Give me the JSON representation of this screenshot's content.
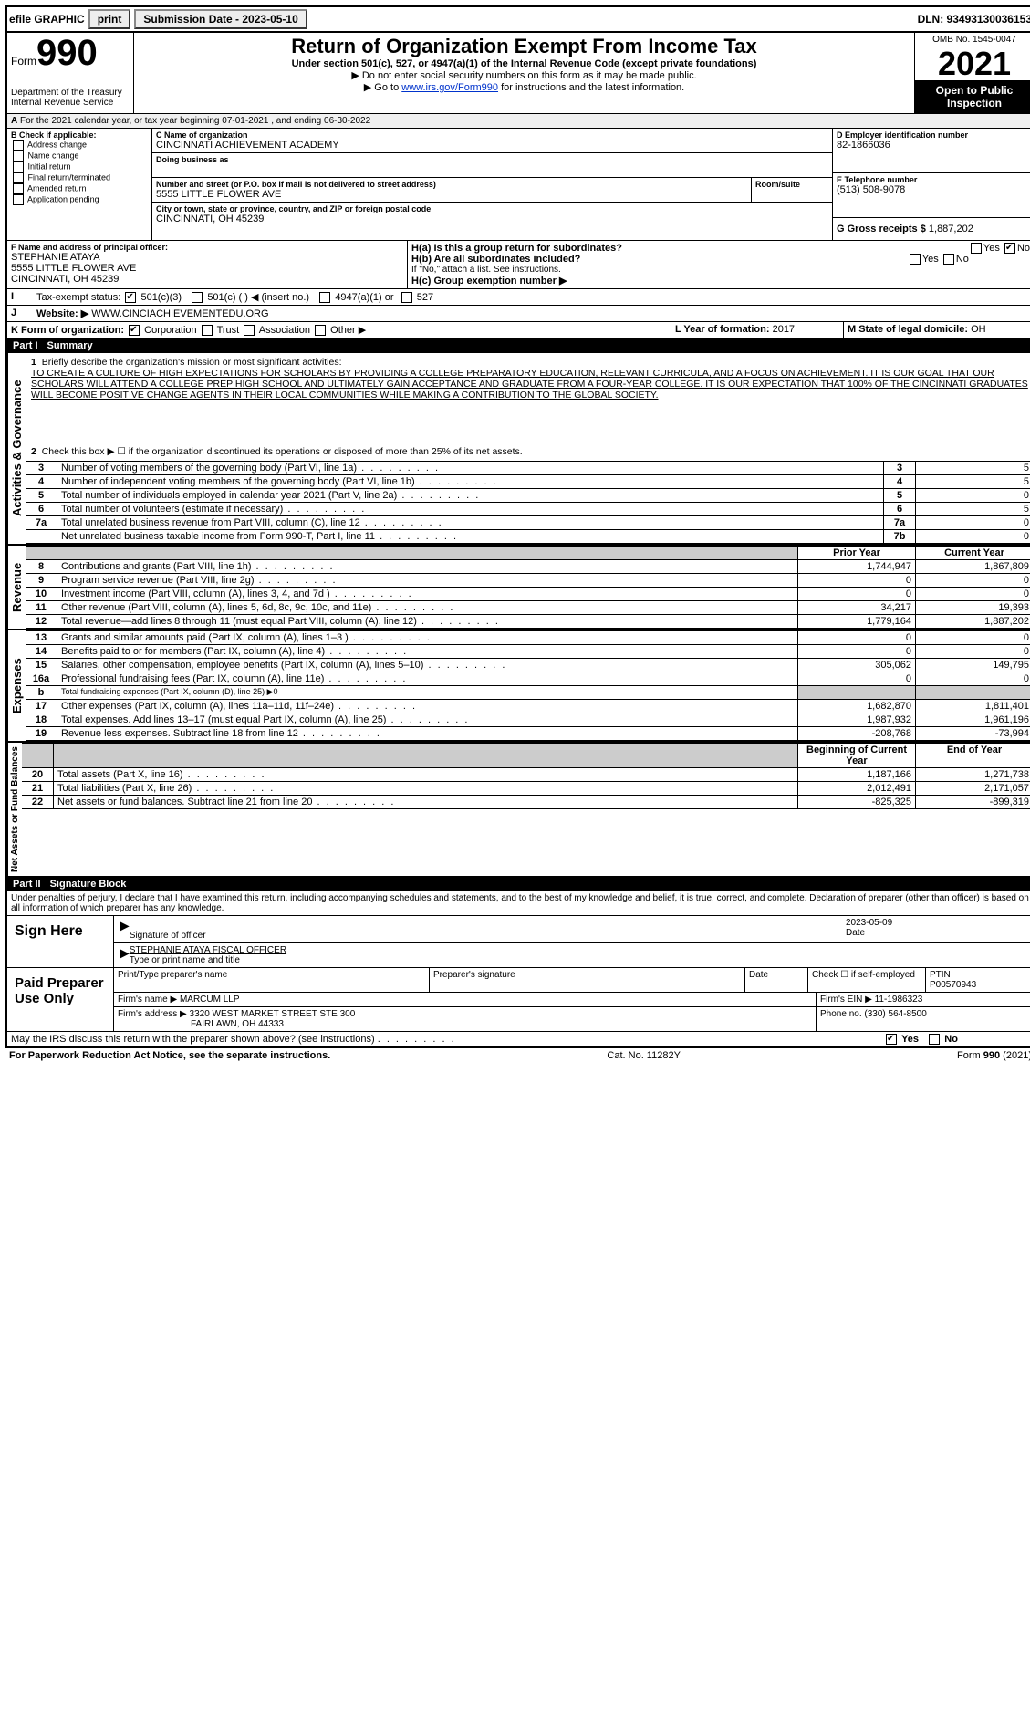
{
  "topbar": {
    "efile": "efile GRAPHIC",
    "print": "print",
    "sub_lbl": "Submission Date - 2023-05-10",
    "dln": "DLN: 93493130036153"
  },
  "header": {
    "form_word": "Form",
    "form_num": "990",
    "dept": "Department of the Treasury",
    "irs": "Internal Revenue Service",
    "title": "Return of Organization Exempt From Income Tax",
    "sub1": "Under section 501(c), 527, or 4947(a)(1) of the Internal Revenue Code (except private foundations)",
    "sub2": "▶ Do not enter social security numbers on this form as it may be made public.",
    "sub3_pre": "▶ Go to ",
    "sub3_link": "www.irs.gov/Form990",
    "sub3_post": " for instructions and the latest information.",
    "omb": "OMB No. 1545-0047",
    "year": "2021",
    "open": "Open to Public Inspection"
  },
  "periodA": "For the 2021 calendar year, or tax year beginning 07-01-2021 , and ending 06-30-2022",
  "boxB": {
    "title": "B Check if applicable:",
    "opts": [
      "Address change",
      "Name change",
      "Initial return",
      "Final return/terminated",
      "Amended return",
      "Application pending"
    ]
  },
  "boxC": {
    "lbl": "C Name of organization",
    "name": "CINCINNATI ACHIEVEMENT ACADEMY",
    "dba_lbl": "Doing business as",
    "addr_lbl": "Number and street (or P.O. box if mail is not delivered to street address)",
    "room_lbl": "Room/suite",
    "addr": "5555 LITTLE FLOWER AVE",
    "city_lbl": "City or town, state or province, country, and ZIP or foreign postal code",
    "city": "CINCINNATI, OH  45239"
  },
  "boxD": {
    "lbl": "D Employer identification number",
    "val": "82-1866036"
  },
  "boxE": {
    "lbl": "E Telephone number",
    "val": "(513) 508-9078"
  },
  "boxG": {
    "lbl": "G Gross receipts $",
    "val": "1,887,202"
  },
  "boxF": {
    "lbl": "F  Name and address of principal officer:",
    "name": "STEPHANIE ATAYA",
    "addr1": "5555 LITTLE FLOWER AVE",
    "addr2": "CINCINNATI, OH  45239"
  },
  "boxH": {
    "a": "H(a)  Is this a group return for subordinates?",
    "b": "H(b)  Are all subordinates included?",
    "note": "If \"No,\" attach a list. See instructions.",
    "c": "H(c)  Group exemption number ▶"
  },
  "lineI": {
    "lbl": "Tax-exempt status:",
    "o1": "501(c)(3)",
    "o2": "501(c) (  ) ◀ (insert no.)",
    "o3": "4947(a)(1) or",
    "o4": "527"
  },
  "lineJ": {
    "lbl": "Website: ▶",
    "val": "WWW.CINCIACHIEVEMENTEDU.ORG"
  },
  "lineK": {
    "lbl": "K Form of organization:",
    "o1": "Corporation",
    "o2": "Trust",
    "o3": "Association",
    "o4": "Other ▶"
  },
  "lineL": {
    "lbl": "L Year of formation:",
    "val": "2017"
  },
  "lineM": {
    "lbl": "M State of legal domicile:",
    "val": "OH"
  },
  "part1": {
    "title": "Summary",
    "vert1": "Activities & Governance",
    "vert2": "Revenue",
    "vert3": "Expenses",
    "vert4": "Net Assets or Fund Balances",
    "l1_lbl": "Briefly describe the organization's mission or most significant activities:",
    "l1_text": "TO CREATE A CULTURE OF HIGH EXPECTATIONS FOR SCHOLARS BY PROVIDING A COLLEGE PREPARATORY EDUCATION, RELEVANT CURRICULA, AND A FOCUS ON ACHIEVEMENT. IT IS OUR GOAL THAT OUR SCHOLARS WILL ATTEND A COLLEGE PREP HIGH SCHOOL AND ULTIMATELY GAIN ACCEPTANCE AND GRADUATE FROM A FOUR-YEAR COLLEGE. IT IS OUR EXPECTATION THAT 100% OF THE CINCINNATI GRADUATES WILL BECOME POSITIVE CHANGE AGENTS IN THEIR LOCAL COMMUNITIES WHILE MAKING A CONTRIBUTION TO THE GLOBAL SOCIETY.",
    "l2": "Check this box ▶ ☐ if the organization discontinued its operations or disposed of more than 25% of its net assets.",
    "rows_gov": [
      {
        "n": "3",
        "lbl": "Number of voting members of the governing body (Part VI, line 1a)",
        "box": "3",
        "val": "5"
      },
      {
        "n": "4",
        "lbl": "Number of independent voting members of the governing body (Part VI, line 1b)",
        "box": "4",
        "val": "5"
      },
      {
        "n": "5",
        "lbl": "Total number of individuals employed in calendar year 2021 (Part V, line 2a)",
        "box": "5",
        "val": "0"
      },
      {
        "n": "6",
        "lbl": "Total number of volunteers (estimate if necessary)",
        "box": "6",
        "val": "5"
      },
      {
        "n": "7a",
        "lbl": "Total unrelated business revenue from Part VIII, column (C), line 12",
        "box": "7a",
        "val": "0"
      },
      {
        "n": "",
        "lbl": "Net unrelated business taxable income from Form 990-T, Part I, line 11",
        "box": "7b",
        "val": "0"
      }
    ],
    "hdr_prior": "Prior Year",
    "hdr_curr": "Current Year",
    "rows_rev": [
      {
        "n": "8",
        "lbl": "Contributions and grants (Part VIII, line 1h)",
        "p": "1,744,947",
        "c": "1,867,809"
      },
      {
        "n": "9",
        "lbl": "Program service revenue (Part VIII, line 2g)",
        "p": "0",
        "c": "0"
      },
      {
        "n": "10",
        "lbl": "Investment income (Part VIII, column (A), lines 3, 4, and 7d )",
        "p": "0",
        "c": "0"
      },
      {
        "n": "11",
        "lbl": "Other revenue (Part VIII, column (A), lines 5, 6d, 8c, 9c, 10c, and 11e)",
        "p": "34,217",
        "c": "19,393"
      },
      {
        "n": "12",
        "lbl": "Total revenue—add lines 8 through 11 (must equal Part VIII, column (A), line 12)",
        "p": "1,779,164",
        "c": "1,887,202"
      }
    ],
    "rows_exp": [
      {
        "n": "13",
        "lbl": "Grants and similar amounts paid (Part IX, column (A), lines 1–3 )",
        "p": "0",
        "c": "0"
      },
      {
        "n": "14",
        "lbl": "Benefits paid to or for members (Part IX, column (A), line 4)",
        "p": "0",
        "c": "0"
      },
      {
        "n": "15",
        "lbl": "Salaries, other compensation, employee benefits (Part IX, column (A), lines 5–10)",
        "p": "305,062",
        "c": "149,795"
      },
      {
        "n": "16a",
        "lbl": "Professional fundraising fees (Part IX, column (A), line 11e)",
        "p": "0",
        "c": "0"
      },
      {
        "n": "b",
        "lbl": "Total fundraising expenses (Part IX, column (D), line 25) ▶0",
        "p": "",
        "c": "",
        "shaded": true
      },
      {
        "n": "17",
        "lbl": "Other expenses (Part IX, column (A), lines 11a–11d, 11f–24e)",
        "p": "1,682,870",
        "c": "1,811,401"
      },
      {
        "n": "18",
        "lbl": "Total expenses. Add lines 13–17 (must equal Part IX, column (A), line 25)",
        "p": "1,987,932",
        "c": "1,961,196"
      },
      {
        "n": "19",
        "lbl": "Revenue less expenses. Subtract line 18 from line 12",
        "p": "-208,768",
        "c": "-73,994"
      }
    ],
    "hdr_begin": "Beginning of Current Year",
    "hdr_end": "End of Year",
    "rows_net": [
      {
        "n": "20",
        "lbl": "Total assets (Part X, line 16)",
        "p": "1,187,166",
        "c": "1,271,738"
      },
      {
        "n": "21",
        "lbl": "Total liabilities (Part X, line 26)",
        "p": "2,012,491",
        "c": "2,171,057"
      },
      {
        "n": "22",
        "lbl": "Net assets or fund balances. Subtract line 21 from line 20",
        "p": "-825,325",
        "c": "-899,319"
      }
    ]
  },
  "part2": {
    "title": "Signature Block",
    "decl": "Under penalties of perjury, I declare that I have examined this return, including accompanying schedules and statements, and to the best of my knowledge and belief, it is true, correct, and complete. Declaration of preparer (other than officer) is based on all information of which preparer has any knowledge.",
    "sign_here": "Sign Here",
    "sig_officer": "Signature of officer",
    "sig_date": "2023-05-09",
    "sig_date_lbl": "Date",
    "sig_name": "STEPHANIE ATAYA  FISCAL OFFICER",
    "sig_name_lbl": "Type or print name and title",
    "paid": "Paid Preparer Use Only",
    "prep_name_lbl": "Print/Type preparer's name",
    "prep_sig_lbl": "Preparer's signature",
    "prep_date_lbl": "Date",
    "prep_self": "Check ☐ if self-employed",
    "ptin_lbl": "PTIN",
    "ptin": "P00570943",
    "firm_name_lbl": "Firm's name   ▶",
    "firm_name": "MARCUM LLP",
    "firm_ein_lbl": "Firm's EIN ▶",
    "firm_ein": "11-1986323",
    "firm_addr_lbl": "Firm's address ▶",
    "firm_addr1": "3320 WEST MARKET STREET STE 300",
    "firm_addr2": "FAIRLAWN, OH  44333",
    "phone_lbl": "Phone no.",
    "phone": "(330) 564-8500",
    "discuss": "May the IRS discuss this return with the preparer shown above? (see instructions)",
    "yes": "Yes",
    "no": "No"
  },
  "footer": {
    "pra": "For Paperwork Reduction Act Notice, see the separate instructions.",
    "cat": "Cat. No. 11282Y",
    "form": "Form 990 (2021)"
  }
}
